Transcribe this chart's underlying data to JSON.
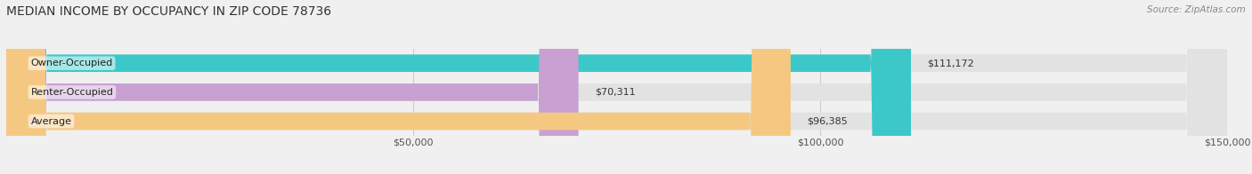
{
  "title": "MEDIAN INCOME BY OCCUPANCY IN ZIP CODE 78736",
  "source": "Source: ZipAtlas.com",
  "categories": [
    "Owner-Occupied",
    "Renter-Occupied",
    "Average"
  ],
  "values": [
    111172,
    70311,
    96385
  ],
  "labels": [
    "$111,172",
    "$70,311",
    "$96,385"
  ],
  "bar_colors": [
    "#3cc8c8",
    "#c8a0d2",
    "#f5c882"
  ],
  "background_color": "#f0f0f0",
  "bar_bg_color": "#e2e2e2",
  "xlim": [
    0,
    150000
  ],
  "xticks": [
    50000,
    100000,
    150000
  ],
  "xtick_labels": [
    "$50,000",
    "$100,000",
    "$150,000"
  ],
  "title_fontsize": 10,
  "source_fontsize": 7.5,
  "bar_height": 0.6,
  "label_fontsize": 8,
  "category_fontsize": 8
}
